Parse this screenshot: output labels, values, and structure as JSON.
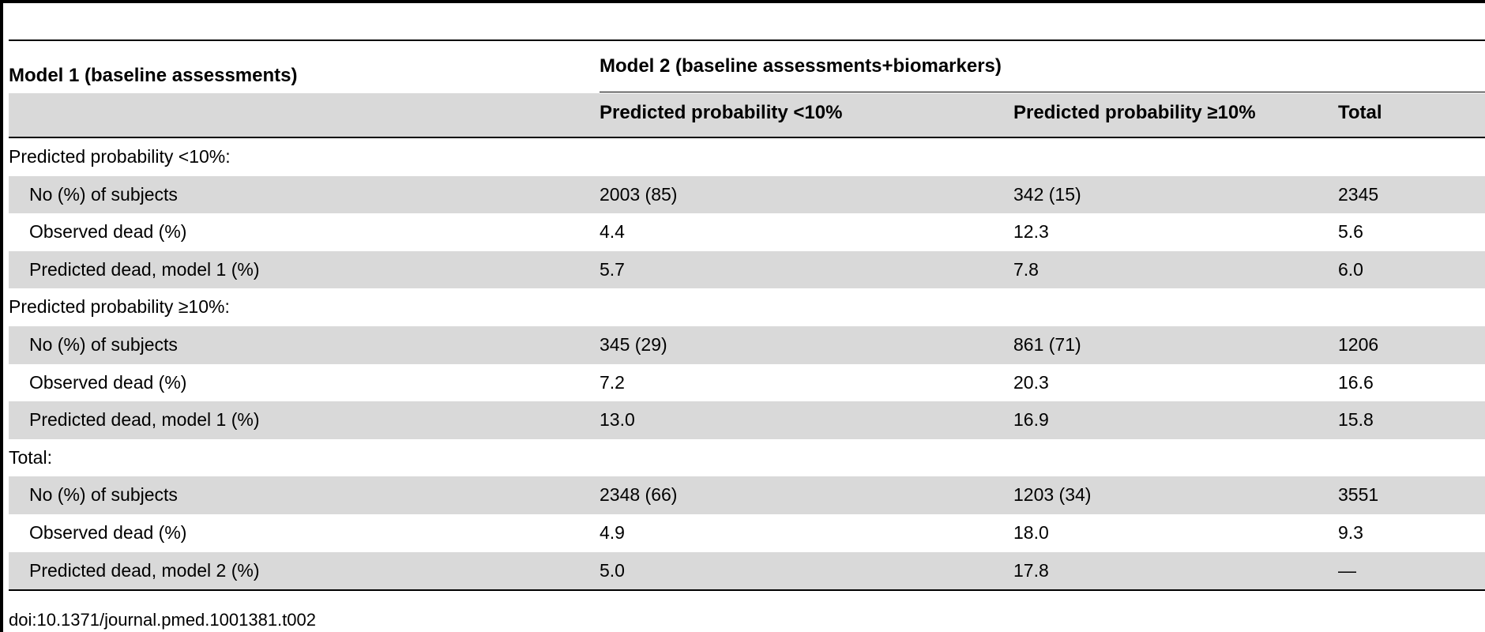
{
  "header": {
    "model1": "Model 1 (baseline assessments)",
    "model2": "Model 2 (baseline assessments+biomarkers)",
    "col_lt10": "Predicted probability <10%",
    "col_ge10": "Predicted probability ≥10%",
    "col_total": "Total"
  },
  "sections": [
    {
      "title": "Predicted probability <10%:",
      "rows": [
        {
          "label": "No (%) of subjects",
          "lt10": "2003 (85)",
          "ge10": "342 (15)",
          "total": "2345"
        },
        {
          "label": "Observed dead (%)",
          "lt10": "4.4",
          "ge10": "12.3",
          "total": "5.6"
        },
        {
          "label": "Predicted dead, model 1 (%)",
          "lt10": "5.7",
          "ge10": "7.8",
          "total": "6.0"
        }
      ]
    },
    {
      "title": "Predicted probability ≥10%:",
      "rows": [
        {
          "label": "No (%) of subjects",
          "lt10": "345 (29)",
          "ge10": "861 (71)",
          "total": "1206"
        },
        {
          "label": "Observed dead (%)",
          "lt10": "7.2",
          "ge10": "20.3",
          "total": "16.6"
        },
        {
          "label": "Predicted dead, model 1 (%)",
          "lt10": "13.0",
          "ge10": "16.9",
          "total": "15.8"
        }
      ]
    },
    {
      "title": "Total:",
      "rows": [
        {
          "label": "No (%) of subjects",
          "lt10": "2348 (66)",
          "ge10": "1203 (34)",
          "total": "3551"
        },
        {
          "label": "Observed dead (%)",
          "lt10": "4.9",
          "ge10": "18.0",
          "total": "9.3"
        },
        {
          "label": "Predicted dead, model 2 (%)",
          "lt10": "5.0",
          "ge10": "17.8",
          "total": "—"
        }
      ]
    }
  ],
  "doi": "doi:10.1371/journal.pmed.1001381.t002"
}
